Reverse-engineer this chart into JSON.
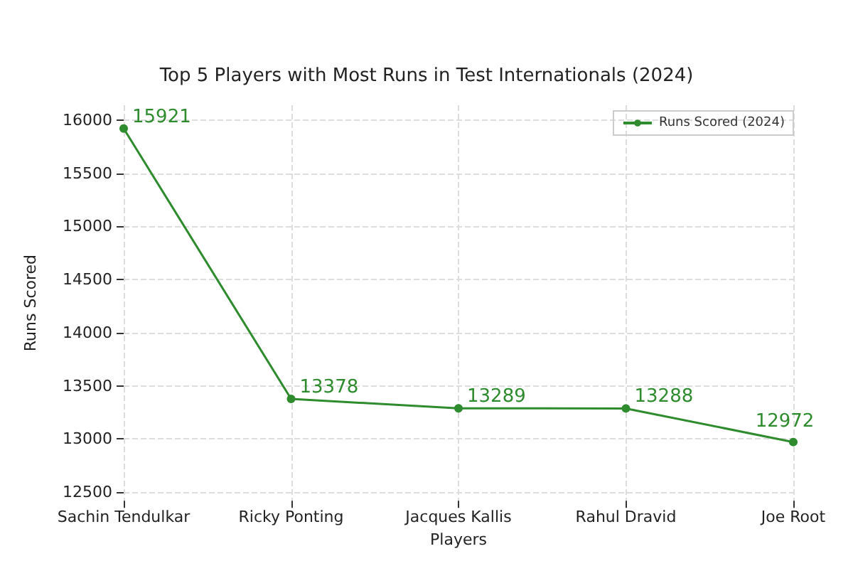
{
  "chart_data": {
    "type": "line",
    "title": "Top 5 Players with Most Runs in Test Internationals (2024)",
    "xlabel": "Players",
    "ylabel": "Runs Scored",
    "categories": [
      "Sachin Tendulkar",
      "Ricky Ponting",
      "Jacques Kallis",
      "Rahul Dravid",
      "Joe Root"
    ],
    "series": [
      {
        "name": "Runs Scored (2024)",
        "color": "#2e8b2e",
        "values": [
          15921,
          13378,
          13289,
          13288,
          12972
        ]
      }
    ],
    "ylim": [
      12420,
      16140
    ],
    "yticks": [
      12500,
      13000,
      13500,
      14000,
      14500,
      15000,
      15500,
      16000
    ],
    "grid": true,
    "legend": "top right",
    "marker": "circle",
    "line_style": "solid",
    "data_labels": true
  }
}
